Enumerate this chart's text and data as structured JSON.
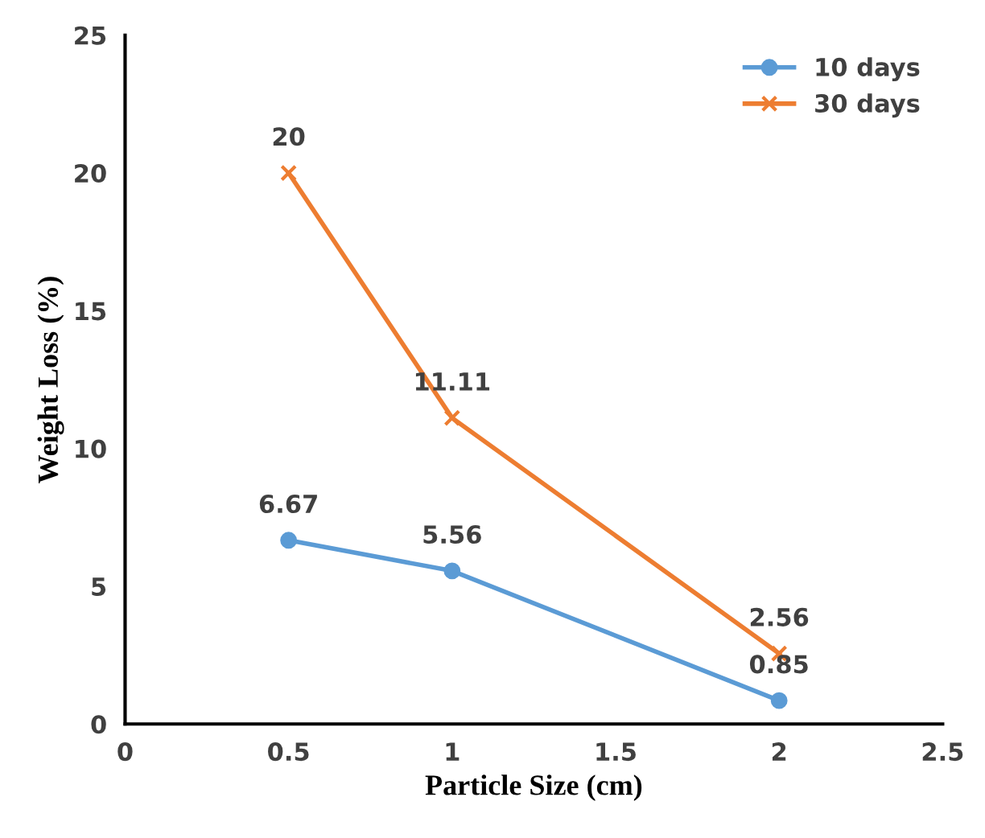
{
  "chart_data": {
    "type": "line",
    "xlabel": "Particle Size (cm)",
    "ylabel": "Weight Loss (%)",
    "x": [
      0.5,
      1,
      2
    ],
    "series": [
      {
        "name": "10 days",
        "color": "#5b9bd5",
        "marker": "circle",
        "values": [
          6.67,
          5.56,
          0.85
        ]
      },
      {
        "name": "30 days",
        "color": "#ed7d31",
        "marker": "cross",
        "values": [
          20,
          11.11,
          2.56
        ]
      }
    ],
    "xlim": [
      0,
      2.5
    ],
    "xticks": [
      0,
      0.5,
      1,
      1.5,
      2,
      2.5
    ],
    "ylim": [
      0,
      25
    ],
    "yticks": [
      0,
      5,
      10,
      15,
      20,
      25
    ],
    "grid": false,
    "legend": "top right",
    "data_labels": true
  }
}
